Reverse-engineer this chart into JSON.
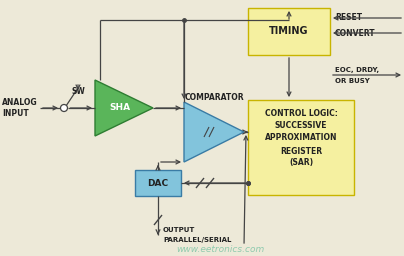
{
  "bg_color": "#ede9d8",
  "sha_color": "#5ab55a",
  "sha_edge": "#2e7d32",
  "comp_color": "#82c4dc",
  "comp_edge": "#3a7ca5",
  "timing_color": "#f5f0a0",
  "timing_edge": "#c8b400",
  "sar_color": "#f5f0a0",
  "sar_edge": "#c8b400",
  "dac_color": "#82c4dc",
  "dac_edge": "#3a7ca5",
  "line_color": "#444444",
  "text_color": "#222222",
  "watermark": "www.eetronics.com",
  "watermark_color": "#70c0a0",
  "reset_text": "RESET",
  "convert_text": "CONVERT",
  "eoc_text": "EOC, DRDY,",
  "busy_text": "OR BUSY",
  "analog_text": "ANALOG\nINPUT",
  "sw_text": "SW",
  "sha_text": "SHA",
  "comp_label": "COMPARATOR",
  "timing_text": "TIMING",
  "sar_line1": "CONTROL LOGIC:",
  "sar_line2": "SUCCESSIVE",
  "sar_line3": "APPROXIMATION",
  "sar_line4": "REGISTER",
  "sar_line5": "(SAR)",
  "dac_text": "DAC",
  "output_line1": "OUTPUT",
  "output_line2": "PARALLEL/SERIAL"
}
